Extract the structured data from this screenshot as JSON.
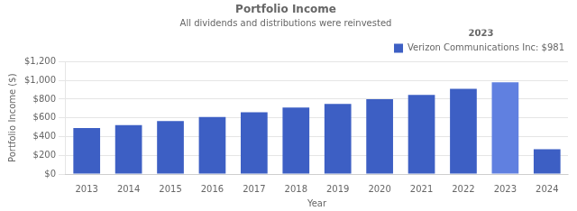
{
  "chart_data": {
    "type": "bar",
    "title": "Portfolio Income",
    "subtitle": "All dividends and distributions were reinvested",
    "xlabel": "Year",
    "ylabel": "Portfolio Income ($)",
    "categories": [
      "2013",
      "2014",
      "2015",
      "2016",
      "2017",
      "2018",
      "2019",
      "2020",
      "2021",
      "2022",
      "2023",
      "2024"
    ],
    "series": [
      {
        "name": "Verizon Communications Inc: $981",
        "color": "#3d5fc4",
        "colors": [
          "#3d5fc4",
          "#3d5fc4",
          "#3d5fc4",
          "#3d5fc4",
          "#3d5fc4",
          "#3d5fc4",
          "#3d5fc4",
          "#3d5fc4",
          "#3d5fc4",
          "#3d5fc4",
          "#6080e0",
          "#3d5fc4"
        ],
        "values": [
          490,
          522,
          565,
          610,
          660,
          710,
          750,
          800,
          845,
          910,
          981,
          265
        ]
      }
    ],
    "legend_title": "2023",
    "legend": "upper right",
    "ylim": [
      0,
      1200
    ],
    "yticks": [
      {
        "value": 0,
        "label": "$0"
      },
      {
        "value": 200,
        "label": "$200"
      },
      {
        "value": 400,
        "label": "$400"
      },
      {
        "value": 600,
        "label": "$600"
      },
      {
        "value": 800,
        "label": "$800"
      },
      {
        "value": 1000,
        "label": "$1,000"
      },
      {
        "value": 1200,
        "label": "$1,200"
      }
    ],
    "grid": true
  }
}
